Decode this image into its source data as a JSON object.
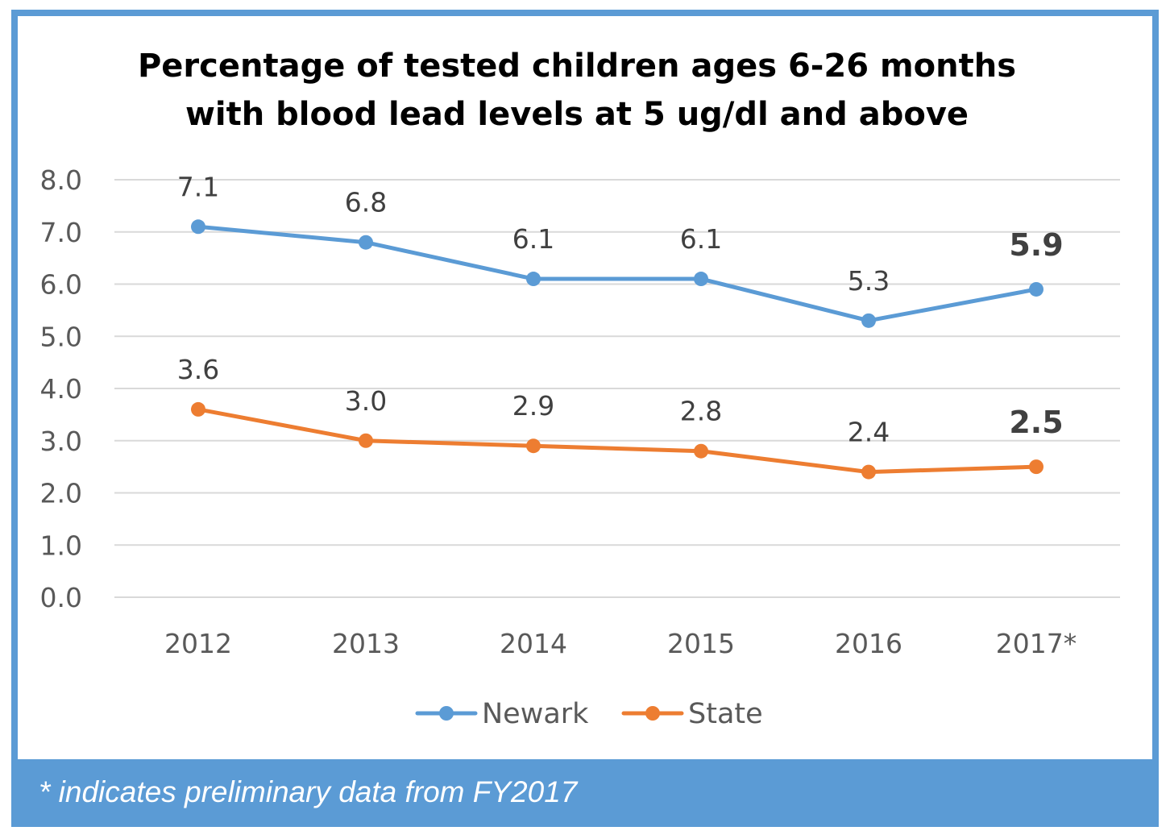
{
  "chart_data": {
    "type": "line",
    "title_lines": [
      "Percentage of tested children ages 6-26 months",
      "with blood lead levels at 5 ug/dl and above"
    ],
    "categories": [
      "2012",
      "2013",
      "2014",
      "2015",
      "2016",
      "2017*"
    ],
    "ylim": [
      0,
      8
    ],
    "yticks": [
      "0.0",
      "1.0",
      "2.0",
      "3.0",
      "4.0",
      "5.0",
      "6.0",
      "7.0",
      "8.0"
    ],
    "grid": true,
    "legend_position": "bottom",
    "series": [
      {
        "name": "Newark",
        "color": "#5b9bd5",
        "values": [
          7.1,
          6.8,
          6.1,
          6.1,
          5.3,
          5.9
        ],
        "labels": [
          "7.1",
          "6.8",
          "6.1",
          "6.1",
          "5.3",
          "5.9"
        ]
      },
      {
        "name": "State",
        "color": "#ed7d31",
        "values": [
          3.6,
          3.0,
          2.9,
          2.8,
          2.4,
          2.5
        ],
        "labels": [
          "3.6",
          "3.0",
          "2.9",
          "2.8",
          "2.4",
          "2.5"
        ]
      }
    ]
  },
  "footnote": "* indicates preliminary data from FY2017"
}
